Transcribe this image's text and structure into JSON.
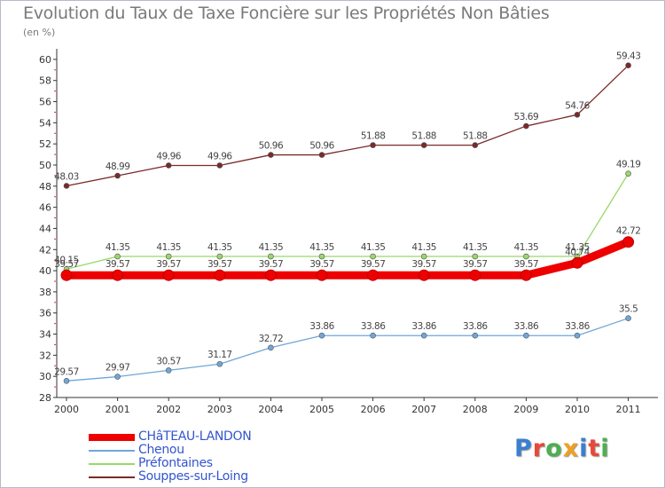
{
  "header": {
    "title": "Evolution du Taux de Taxe Foncière sur les Propriétés Non Bâties",
    "unit": "(en %)"
  },
  "logo": {
    "text": "Proxiti",
    "colors": [
      "#3a7fd0",
      "#e8483a",
      "#4caf50",
      "#f0a020",
      "#3a7fd0",
      "#e8483a",
      "#4caf50"
    ]
  },
  "chart_data": {
    "type": "line",
    "title": "Evolution du Taux de Taxe Foncière sur les Propriétés Non Bâties",
    "ylabel": "(en %)",
    "xlabel": "",
    "ylim": [
      28,
      61
    ],
    "yticks": [
      28,
      30,
      32,
      34,
      36,
      38,
      40,
      42,
      44,
      46,
      48,
      50,
      52,
      54,
      56,
      58,
      60
    ],
    "grid": false,
    "legend_position": "bottom-left",
    "x": [
      "2000",
      "2001",
      "2002",
      "2003",
      "2004",
      "2005",
      "2006",
      "2007",
      "2008",
      "2009",
      "2010",
      "2011"
    ],
    "series": [
      {
        "name": "CHâTEAU-LANDON",
        "color": "#ee0000",
        "emphasis": true,
        "values": [
          39.57,
          39.57,
          39.57,
          39.57,
          39.57,
          39.57,
          39.57,
          39.57,
          39.57,
          39.57,
          40.74,
          42.72
        ],
        "labels": [
          "39.57",
          "39.57",
          "39.57",
          "39.57",
          "39.57",
          "39.57",
          "39.57",
          "39.57",
          "39.57",
          "39.57",
          "40.74",
          "42.72"
        ]
      },
      {
        "name": "Chenou",
        "color": "#6fa7d8",
        "emphasis": false,
        "values": [
          29.57,
          29.97,
          30.57,
          31.17,
          32.72,
          33.86,
          33.86,
          33.86,
          33.86,
          33.86,
          33.86,
          35.5
        ],
        "labels": [
          "29.57",
          "29.97",
          "30.57",
          "31.17",
          "32.72",
          "33.86",
          "33.86",
          "33.86",
          "33.86",
          "33.86",
          "33.86",
          "35.5"
        ]
      },
      {
        "name": "Préfontaines",
        "color": "#9ad86a",
        "emphasis": false,
        "values": [
          40.15,
          41.35,
          41.35,
          41.35,
          41.35,
          41.35,
          41.35,
          41.35,
          41.35,
          41.35,
          41.35,
          49.19
        ],
        "labels": [
          "40.15",
          "41.35",
          "41.35",
          "41.35",
          "41.35",
          "41.35",
          "41.35",
          "41.35",
          "41.35",
          "41.35",
          "41.35",
          "49.19"
        ]
      },
      {
        "name": "Souppes-sur-Loing",
        "color": "#7a2a2a",
        "emphasis": false,
        "values": [
          48.03,
          48.99,
          49.96,
          49.96,
          50.96,
          50.96,
          51.88,
          51.88,
          51.88,
          53.69,
          54.76,
          59.43
        ],
        "labels": [
          "48.03",
          "48.99",
          "49.96",
          "49.96",
          "50.96",
          "50.96",
          "51.88",
          "51.88",
          "51.88",
          "53.69",
          "54.76",
          "59.43"
        ]
      }
    ]
  }
}
